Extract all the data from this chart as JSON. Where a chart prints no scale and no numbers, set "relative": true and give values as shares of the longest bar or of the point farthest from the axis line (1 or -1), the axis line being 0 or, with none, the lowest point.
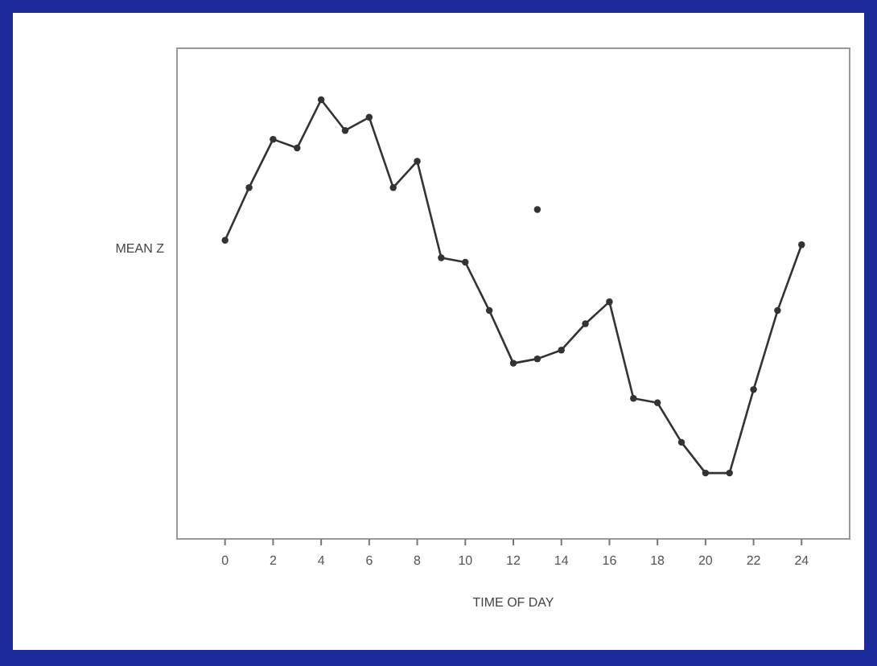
{
  "chart_data": {
    "type": "line",
    "xlabel": "TIME OF DAY",
    "ylabel": "MEAN Z",
    "relative": true,
    "xlim": [
      -2,
      26
    ],
    "xticks": [
      0,
      2,
      4,
      6,
      8,
      10,
      12,
      14,
      16,
      18,
      20,
      22,
      24
    ],
    "marker": "circle",
    "line_style": "solid",
    "series": [
      {
        "color": "#333333",
        "x": [
          0,
          1,
          2,
          3,
          4,
          5,
          6,
          7,
          8,
          9,
          10,
          11,
          12,
          13,
          14,
          15,
          16,
          17,
          18,
          19,
          20,
          21,
          22,
          23,
          24
        ],
        "values": [
          0.68,
          0.8,
          0.91,
          0.89,
          1.0,
          0.93,
          0.96,
          0.8,
          0.86,
          0.64,
          0.63,
          0.52,
          0.4,
          0.41,
          0.43,
          0.49,
          0.54,
          0.32,
          0.31,
          0.22,
          0.15,
          0.15,
          0.34,
          0.52,
          0.67
        ]
      },
      {
        "type": "scatter",
        "color": "#333333",
        "x": [
          13
        ],
        "values": [
          0.75
        ]
      }
    ]
  }
}
